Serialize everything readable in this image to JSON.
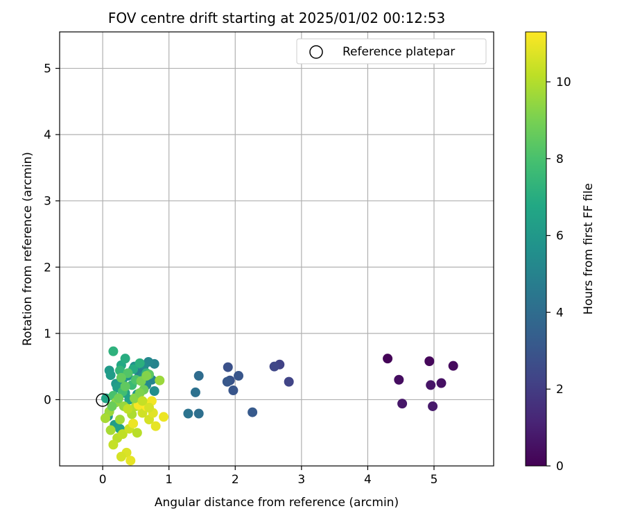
{
  "chart_data": {
    "type": "scatter",
    "title": "FOV centre drift starting at 2025/01/02 00:12:53",
    "xlabel": "Angular distance from reference (arcmin)",
    "ylabel": "Rotation from reference (arcmin)",
    "xlim": [
      -0.65,
      5.9
    ],
    "ylim": [
      -1.0,
      5.55
    ],
    "xticks": [
      0,
      1,
      2,
      3,
      4,
      5
    ],
    "yticks": [
      0,
      1,
      2,
      3,
      4,
      5
    ],
    "grid": true,
    "legend": {
      "position": "upper right",
      "entries": [
        "Reference platepar"
      ]
    },
    "reference_point": {
      "x": 0,
      "y": 0,
      "label": "Reference platepar"
    },
    "colorbar": {
      "label": "Hours from first FF file",
      "min": 0,
      "max": 11.3,
      "ticks": [
        0,
        2,
        4,
        6,
        8,
        10
      ],
      "colormap": "viridis"
    },
    "points": [
      {
        "x": 4.3,
        "y": 0.62,
        "h": 0.1
      },
      {
        "x": 4.93,
        "y": 0.58,
        "h": 0.2
      },
      {
        "x": 5.29,
        "y": 0.51,
        "h": 0.3
      },
      {
        "x": 4.47,
        "y": 0.3,
        "h": 0.4
      },
      {
        "x": 5.11,
        "y": 0.25,
        "h": 0.5
      },
      {
        "x": 4.95,
        "y": 0.22,
        "h": 0.6
      },
      {
        "x": 4.52,
        "y": -0.06,
        "h": 0.7
      },
      {
        "x": 4.98,
        "y": -0.1,
        "h": 0.8
      },
      {
        "x": 2.67,
        "y": 0.53,
        "h": 2.2
      },
      {
        "x": 2.59,
        "y": 0.5,
        "h": 2.4
      },
      {
        "x": 2.81,
        "y": 0.27,
        "h": 2.3
      },
      {
        "x": 1.89,
        "y": 0.49,
        "h": 2.8
      },
      {
        "x": 2.05,
        "y": 0.36,
        "h": 3.0
      },
      {
        "x": 1.92,
        "y": 0.29,
        "h": 2.9
      },
      {
        "x": 1.88,
        "y": 0.27,
        "h": 3.1
      },
      {
        "x": 1.97,
        "y": 0.14,
        "h": 3.0
      },
      {
        "x": 2.26,
        "y": -0.19,
        "h": 3.2
      },
      {
        "x": 1.45,
        "y": 0.36,
        "h": 4.0
      },
      {
        "x": 1.4,
        "y": 0.11,
        "h": 4.2
      },
      {
        "x": 1.29,
        "y": -0.21,
        "h": 4.3
      },
      {
        "x": 1.45,
        "y": -0.21,
        "h": 4.1
      },
      {
        "x": 0.78,
        "y": 0.54,
        "h": 5.0
      },
      {
        "x": 0.69,
        "y": 0.57,
        "h": 5.2
      },
      {
        "x": 0.62,
        "y": 0.5,
        "h": 5.4
      },
      {
        "x": 0.48,
        "y": 0.5,
        "h": 5.6
      },
      {
        "x": 0.55,
        "y": 0.4,
        "h": 5.0
      },
      {
        "x": 0.74,
        "y": 0.3,
        "h": 5.1
      },
      {
        "x": 0.66,
        "y": 0.22,
        "h": 5.3
      },
      {
        "x": 0.78,
        "y": 0.13,
        "h": 5.5
      },
      {
        "x": 0.38,
        "y": 0.36,
        "h": 5.7
      },
      {
        "x": 0.3,
        "y": 0.3,
        "h": 5.9
      },
      {
        "x": 0.2,
        "y": 0.24,
        "h": 6.0
      },
      {
        "x": 0.1,
        "y": 0.44,
        "h": 6.1
      },
      {
        "x": 0.12,
        "y": 0.37,
        "h": 6.2
      },
      {
        "x": 0.22,
        "y": 0.18,
        "h": 6.3
      },
      {
        "x": 0.34,
        "y": 0.1,
        "h": 6.4
      },
      {
        "x": 0.4,
        "y": 0.0,
        "h": 6.5
      },
      {
        "x": 0.05,
        "y": 0.02,
        "h": 6.6
      },
      {
        "x": 0.08,
        "y": -0.25,
        "h": 6.0
      },
      {
        "x": 0.18,
        "y": -0.38,
        "h": 6.2
      },
      {
        "x": 0.26,
        "y": -0.44,
        "h": 6.4
      },
      {
        "x": 0.52,
        "y": 0.08,
        "h": 5.8
      },
      {
        "x": 0.6,
        "y": 0.34,
        "h": 5.6
      },
      {
        "x": 0.28,
        "y": 0.52,
        "h": 6.8
      },
      {
        "x": 0.34,
        "y": 0.62,
        "h": 7.0
      },
      {
        "x": 0.16,
        "y": 0.73,
        "h": 7.2
      },
      {
        "x": 0.46,
        "y": 0.46,
        "h": 6.9
      },
      {
        "x": 0.56,
        "y": 0.55,
        "h": 7.1
      },
      {
        "x": 0.66,
        "y": 0.4,
        "h": 7.3
      },
      {
        "x": 0.26,
        "y": 0.44,
        "h": 7.4
      },
      {
        "x": 0.44,
        "y": 0.22,
        "h": 7.6
      },
      {
        "x": 0.3,
        "y": 0.12,
        "h": 7.8
      },
      {
        "x": 0.16,
        "y": 0.06,
        "h": 8.0
      },
      {
        "x": 0.5,
        "y": 0.3,
        "h": 8.1
      },
      {
        "x": 0.38,
        "y": 0.4,
        "h": 8.2
      },
      {
        "x": 0.7,
        "y": 0.38,
        "h": 8.4
      },
      {
        "x": 0.28,
        "y": 0.33,
        "h": 8.6
      },
      {
        "x": 0.62,
        "y": 0.15,
        "h": 8.8
      },
      {
        "x": 0.58,
        "y": 0.28,
        "h": 9.0
      },
      {
        "x": 0.66,
        "y": 0.36,
        "h": 9.2
      },
      {
        "x": 0.86,
        "y": 0.29,
        "h": 9.6
      },
      {
        "x": 0.2,
        "y": -0.04,
        "h": 9.4
      },
      {
        "x": 0.32,
        "y": -0.1,
        "h": 9.5
      },
      {
        "x": 0.1,
        "y": -0.18,
        "h": 9.6
      },
      {
        "x": 0.04,
        "y": -0.28,
        "h": 9.8
      },
      {
        "x": 0.26,
        "y": -0.3,
        "h": 9.7
      },
      {
        "x": 0.44,
        "y": -0.22,
        "h": 9.9
      },
      {
        "x": 0.5,
        "y": -0.1,
        "h": 10.0
      },
      {
        "x": 0.12,
        "y": -0.46,
        "h": 9.8
      },
      {
        "x": 0.22,
        "y": -0.58,
        "h": 10.1
      },
      {
        "x": 0.3,
        "y": -0.52,
        "h": 10.2
      },
      {
        "x": 0.16,
        "y": -0.68,
        "h": 10.3
      },
      {
        "x": 0.4,
        "y": -0.44,
        "h": 10.4
      },
      {
        "x": 0.6,
        "y": -0.2,
        "h": 10.5
      },
      {
        "x": 0.7,
        "y": -0.3,
        "h": 10.6
      },
      {
        "x": 0.76,
        "y": -0.2,
        "h": 10.8
      },
      {
        "x": 0.8,
        "y": -0.4,
        "h": 10.9
      },
      {
        "x": 0.92,
        "y": -0.26,
        "h": 11.0
      },
      {
        "x": 0.74,
        "y": -0.02,
        "h": 11.1
      },
      {
        "x": 0.54,
        "y": -0.08,
        "h": 11.2
      },
      {
        "x": 0.36,
        "y": -0.8,
        "h": 10.7
      },
      {
        "x": 0.28,
        "y": -0.86,
        "h": 10.6
      },
      {
        "x": 0.42,
        "y": -0.92,
        "h": 10.9
      },
      {
        "x": 0.46,
        "y": -0.36,
        "h": 11.0
      },
      {
        "x": 0.66,
        "y": -0.1,
        "h": 11.3
      },
      {
        "x": 0.38,
        "y": -0.14,
        "h": 10.2
      },
      {
        "x": 0.48,
        "y": 0.02,
        "h": 9.3
      },
      {
        "x": 0.56,
        "y": 0.1,
        "h": 9.1
      },
      {
        "x": 0.24,
        "y": 0.02,
        "h": 8.9
      },
      {
        "x": 0.14,
        "y": -0.1,
        "h": 8.7
      },
      {
        "x": 0.34,
        "y": 0.2,
        "h": 8.5
      },
      {
        "x": 0.6,
        "y": -0.02,
        "h": 10.3
      },
      {
        "x": 0.7,
        "y": -0.12,
        "h": 10.6
      },
      {
        "x": 0.52,
        "y": -0.5,
        "h": 10.1
      }
    ]
  }
}
